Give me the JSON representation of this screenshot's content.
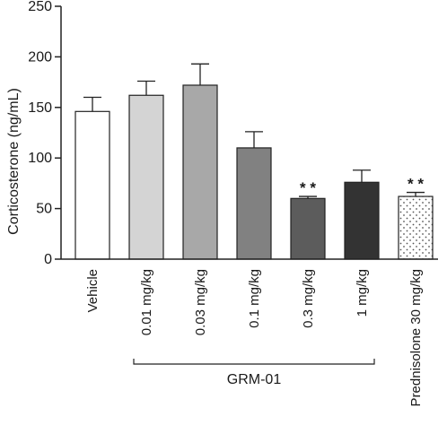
{
  "chart_data": {
    "type": "bar",
    "ylabel": "Corticosterone (ng/mL)",
    "ylim": [
      0,
      250
    ],
    "yticks": [
      "0",
      "50",
      "100",
      "150",
      "200",
      "250"
    ],
    "grid": false,
    "categories": [
      "Vehicle",
      "0.01 mg/kg",
      "0.03 mg/kg",
      "0.1 mg/kg",
      "0.3 mg/kg",
      "1 mg/kg",
      "Prednisolone 30 mg/kg"
    ],
    "values": [
      146,
      162,
      172,
      110,
      60,
      76,
      62
    ],
    "errors": [
      14,
      14,
      21,
      16,
      2,
      12,
      4
    ],
    "bar_fills": [
      "#ffffff",
      "#d4d4d4",
      "#a8a8a8",
      "#818181",
      "#5c5c5c",
      "#333333",
      "dotted"
    ],
    "significance": [
      "",
      "",
      "",
      "",
      "* *",
      "",
      "* *"
    ],
    "group_bracket": {
      "label": "GRM-01",
      "from_index": 1,
      "to_index": 5
    }
  }
}
